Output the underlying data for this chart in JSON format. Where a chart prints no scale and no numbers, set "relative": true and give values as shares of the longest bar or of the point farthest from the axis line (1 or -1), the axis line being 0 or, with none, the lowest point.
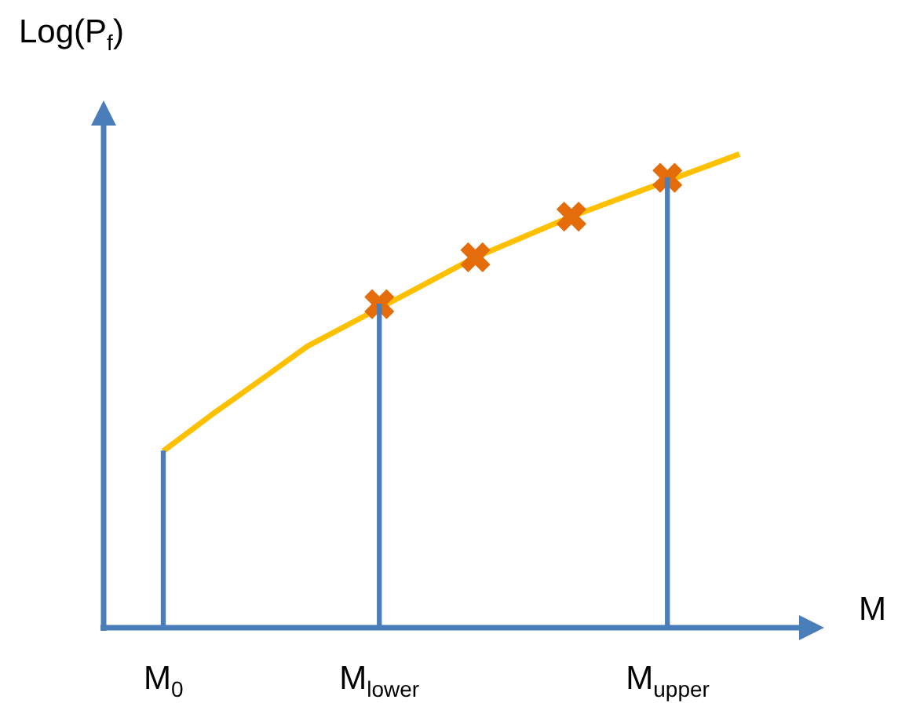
{
  "chart_data": {
    "type": "line",
    "relative": true,
    "xlabel": "M",
    "ylabel": "Log(P$_{f}$)",
    "categories": [
      "M$_{0}$",
      null,
      null,
      null,
      null,
      null,
      null,
      null,
      null,
      "M$_{lower}$",
      null,
      null,
      null,
      null,
      null,
      null,
      null,
      null,
      null,
      null,
      null,
      "M$_{upper}$",
      null,
      null,
      null
    ],
    "tick_labels": "x",
    "series": [
      {
        "color": "#ffc000",
        "marker": "none",
        "values": [
          0.373,
          null,
          0.449,
          null,
          0.521,
          null,
          0.594,
          null,
          null,
          null,
          null,
          null,
          null,
          0.782,
          null,
          null,
          null,
          0.868,
          null,
          null,
          null,
          null,
          null,
          null,
          1.0
        ]
      },
      {
        "type": "scatter",
        "color": "#e46c0a",
        "marker": "cross",
        "values": [
          null,
          null,
          null,
          null,
          null,
          null,
          null,
          null,
          null,
          0.683,
          null,
          null,
          null,
          0.782,
          null,
          null,
          null,
          0.868,
          null,
          null,
          null,
          0.95,
          null,
          null,
          null
        ]
      },
      {
        "type": "bar",
        "color": "#4a7ebb",
        "values": [
          0.373,
          null,
          null,
          null,
          null,
          null,
          null,
          null,
          null,
          0.683,
          null,
          null,
          null,
          null,
          null,
          null,
          null,
          null,
          null,
          null,
          null,
          0.95,
          null,
          null,
          null
        ]
      }
    ]
  }
}
